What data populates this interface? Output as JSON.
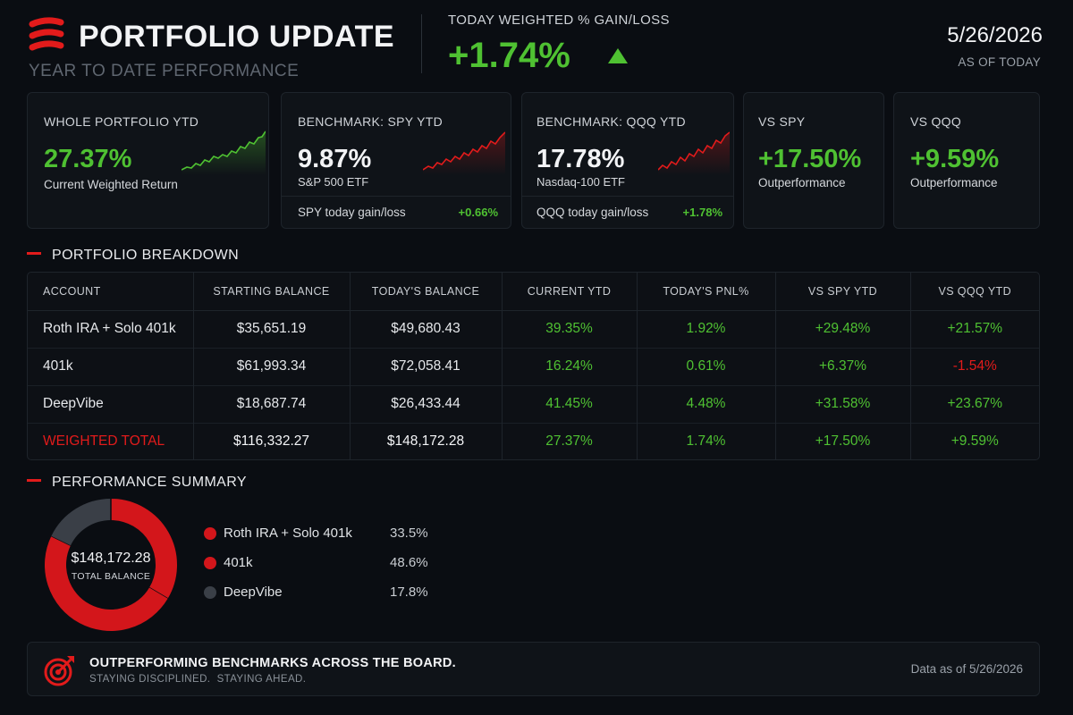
{
  "header": {
    "logo_icon": "stacked-lines-logo-icon",
    "title": "PORTFOLIO UPDATE",
    "subtitle": "YEAR TO DATE PERFORMANCE",
    "today_label": "TODAY WEIGHTED % GAIN/LOSS",
    "today_value": "+1.74%",
    "up_icon": "triangle-up-icon",
    "date": "5/26/2026",
    "as_of": "AS OF TODAY"
  },
  "cards": {
    "portfolio": {
      "label": "WHOLE PORTFOLIO YTD",
      "value": "27.37%",
      "sub": "Current Weighted Return"
    },
    "spy": {
      "label": "BENCHMARK: SPY YTD",
      "value": "9.87%",
      "sub": "S&P 500 ETF",
      "foot_label": "SPY today gain/loss",
      "foot_value": "+0.66%"
    },
    "qqq": {
      "label": "BENCHMARK: QQQ YTD",
      "value": "17.78%",
      "sub": "Nasdaq-100 ETF",
      "foot_label": "QQQ today gain/loss",
      "foot_value": "+1.78%"
    },
    "vs_spy": {
      "label": "VS SPY",
      "value": "+17.50%",
      "sub": "Outperformance"
    },
    "vs_qqq": {
      "label": "VS QQQ",
      "value": "+9.59%",
      "sub": "Outperformance"
    }
  },
  "breakdown": {
    "title": "PORTFOLIO BREAKDOWN",
    "headers": [
      "ACCOUNT",
      "STARTING BALANCE",
      "TODAY'S BALANCE",
      "CURRENT YTD",
      "TODAY'S PNL%",
      "VS SPY YTD",
      "VS QQQ YTD"
    ],
    "rows": [
      [
        "Roth IRA + Solo 401k",
        "$35,651.19",
        "$49,680.43",
        "39.35%",
        "1.92%",
        "+29.48%",
        "+21.57%"
      ],
      [
        "401k",
        "$61,993.34",
        "$72,058.41",
        "16.24%",
        "0.61%",
        "+6.37%",
        "-1.54%"
      ],
      [
        "DeepVibe",
        "$18,687.74",
        "$26,433.44",
        "41.45%",
        "4.48%",
        "+31.58%",
        "+23.67%"
      ]
    ],
    "total": [
      "WEIGHTED TOTAL",
      "$116,332.27",
      "$148,172.28",
      "27.37%",
      "1.74%",
      "+17.50%",
      "+9.59%"
    ]
  },
  "summary": {
    "title": "PERFORMANCE SUMMARY",
    "total_value": "$148,172.28",
    "total_label": "TOTAL BALANCE",
    "legend": [
      {
        "label": "Roth IRA + Solo 401k",
        "pct": "33.5%",
        "value": 33.5,
        "color": "#d3161b"
      },
      {
        "label": "401k",
        "pct": "48.6%",
        "value": 48.6,
        "color": "#d3161b"
      },
      {
        "label": "DeepVibe",
        "pct": "17.8%",
        "value": 17.8,
        "color": "#3a3f47"
      }
    ]
  },
  "banner": {
    "icon": "target-arrow-icon",
    "headline": "OUTPERFORMING BENCHMARKS ACROSS THE BOARD.",
    "tagline": "STAYING DISCIPLINED.  STAYING AHEAD.",
    "data_as_of": "Data as of 5/26/2026"
  },
  "colors": {
    "accent_red": "#e21b1b",
    "gain_green": "#4fc132",
    "background": "#0a0d12",
    "card": "#0f1318"
  }
}
